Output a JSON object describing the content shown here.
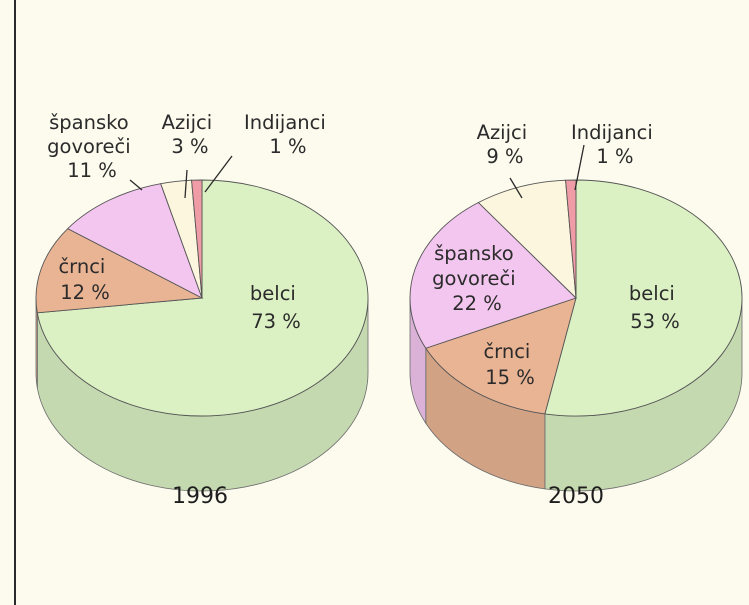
{
  "chart_data": [
    {
      "type": "pie",
      "title": "1996",
      "slices": [
        {
          "label": "belci",
          "value": 73,
          "value_label": "73 %",
          "color": "#dbf1c4"
        },
        {
          "label": "črnci",
          "value": 12,
          "value_label": "12 %",
          "color": "#e9b494"
        },
        {
          "label": "špansko govoreči",
          "value": 11,
          "value_label": "11 %",
          "color": "#f3c6ef"
        },
        {
          "label": "Azijci",
          "value": 3,
          "value_label": "3 %",
          "color": "#fbf6dd"
        },
        {
          "label": "Indijanci",
          "value": 1,
          "value_label": "1 %",
          "color": "#ef9ca6"
        }
      ]
    },
    {
      "type": "pie",
      "title": "2050",
      "slices": [
        {
          "label": "belci",
          "value": 53,
          "value_label": "53 %",
          "color": "#dbf1c4"
        },
        {
          "label": "črnci",
          "value": 15,
          "value_label": "15 %",
          "color": "#e9b494"
        },
        {
          "label": "špansko govoreči",
          "value": 22,
          "value_label": "22 %",
          "color": "#f3c6ef"
        },
        {
          "label": "Azijci",
          "value": 9,
          "value_label": "9 %",
          "color": "#fbf6dd"
        },
        {
          "label": "Indijanci",
          "value": 1,
          "value_label": "1 %",
          "color": "#ef9ca6"
        }
      ]
    }
  ],
  "labels": {
    "p1": {
      "belci": [
        "belci",
        "73 %"
      ],
      "crnci": [
        "črnci",
        "12 %"
      ],
      "spansko": [
        "špansko",
        "govoreči",
        "11 %"
      ],
      "azijci": [
        "Azijci",
        "3 %"
      ],
      "indijanci": [
        "Indijanci",
        "1 %"
      ]
    },
    "p2": {
      "belci": [
        "belci",
        "53 %"
      ],
      "crnci": [
        "črnci",
        "15 %"
      ],
      "spansko": [
        "špansko",
        "govoreči",
        "22 %"
      ],
      "azijci": [
        "Azijci",
        "9 %"
      ],
      "indijanci": [
        "Indijanci",
        "1 %"
      ]
    }
  },
  "years": [
    "1996",
    "2050"
  ]
}
